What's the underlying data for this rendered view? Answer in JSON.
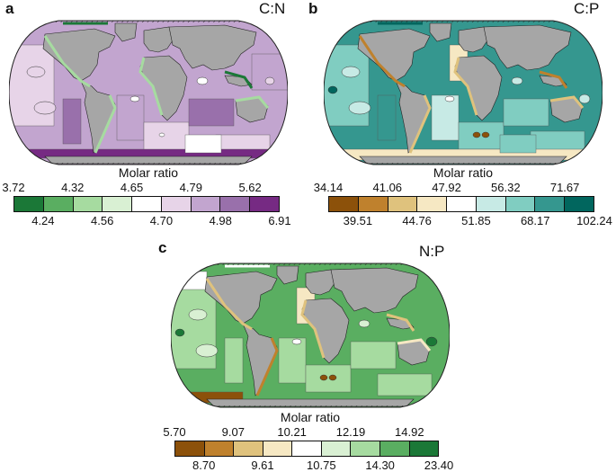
{
  "panels": [
    {
      "letter": "a",
      "title": "C:N",
      "legend_title": "Molar ratio",
      "ticks_top": [
        "3.72",
        "4.32",
        "4.65",
        "4.79",
        "5.62"
      ],
      "ticks_bottom": [
        "4.24",
        "4.56",
        "4.70",
        "4.98",
        "6.91"
      ],
      "colors": [
        "#1b7837",
        "#5aae61",
        "#a6dba0",
        "#d9f0d3",
        "#ffffff",
        "#e7d4e8",
        "#c2a5cf",
        "#9970ab",
        "#762a83"
      ]
    },
    {
      "letter": "b",
      "title": "C:P",
      "legend_title": "Molar ratio",
      "ticks_top": [
        "34.14",
        "41.06",
        "47.92",
        "56.32",
        "71.67"
      ],
      "ticks_bottom": [
        "39.51",
        "44.76",
        "51.85",
        "68.17",
        "102.24"
      ],
      "colors": [
        "#8c510a",
        "#bf812d",
        "#dfc27d",
        "#f6e8c3",
        "#ffffff",
        "#c7eae5",
        "#80cdc1",
        "#35978f",
        "#01665e"
      ]
    },
    {
      "letter": "c",
      "title": "N:P",
      "legend_title": "Molar ratio",
      "ticks_top": [
        "5.70",
        "9.07",
        "10.21",
        "12.19",
        "14.92"
      ],
      "ticks_bottom": [
        "8.70",
        "9.61",
        "10.75",
        "14.30",
        "23.40"
      ],
      "colors": [
        "#8c510a",
        "#bf812d",
        "#dfc27d",
        "#f6e8c3",
        "#ffffff",
        "#d9f0d3",
        "#a6dba0",
        "#5aae61",
        "#1b7837"
      ]
    }
  ]
}
